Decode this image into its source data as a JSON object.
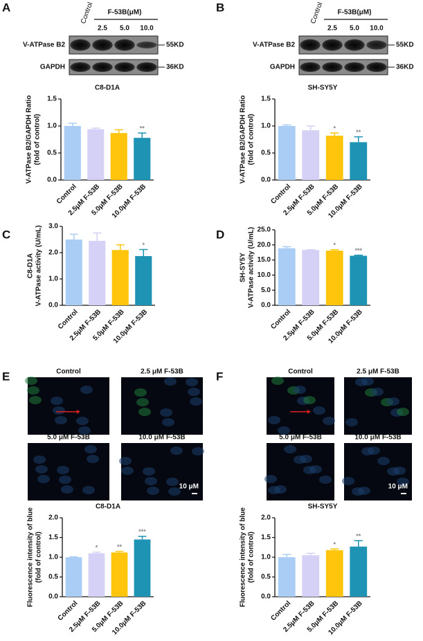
{
  "panel_labels": [
    "A",
    "B",
    "C",
    "D",
    "E",
    "F"
  ],
  "blots": [
    {
      "lanes": [
        "Control",
        "2.5",
        "5.0",
        "10.0"
      ],
      "treatment": "F-53B(μM)",
      "rows": [
        {
          "protein": "V-ATPase B2",
          "size": "55KD"
        },
        {
          "protein": "GAPDH",
          "size": "36KD"
        }
      ]
    },
    {
      "lanes": [
        "Control",
        "2.5",
        "5.0",
        "10.0"
      ],
      "treatment": "F-53B(μM)",
      "rows": [
        {
          "protein": "V-ATPase B2",
          "size": "55KD"
        },
        {
          "protein": "GAPDH",
          "size": "36KD"
        }
      ]
    }
  ],
  "micrographs": [
    {
      "labels": [
        "Control",
        "2.5 μM F-53B",
        "5.0 μM F-53B",
        "10.0 μM F-53B"
      ],
      "scale": "10 μM"
    },
    {
      "labels": [
        "Control",
        "2.5 μM F-53B",
        "5.0 μM F-53B",
        "10.0 μM F-53B"
      ],
      "scale": "10 μM"
    }
  ],
  "chart_data": [
    {
      "type": "bar",
      "title": "C8-D1A",
      "ylabel": [
        "V-ATPase B2/GAPDH Ratio",
        "(fold of control)"
      ],
      "categories": [
        "Control",
        "2.5μM F-53B",
        "5.0μM F-53B",
        "10.0μM F-53B"
      ],
      "values": [
        1.0,
        0.94,
        0.87,
        0.78
      ],
      "errors": [
        0.05,
        0.02,
        0.06,
        0.09
      ],
      "annotations": [
        null,
        null,
        null,
        "**"
      ],
      "colors": [
        "#a9cdf5",
        "#d5d0f6",
        "#fec50c",
        "#1f93b3"
      ],
      "ylim": [
        0,
        1.5
      ],
      "yticks": [
        {
          "value": 0,
          "label": "0.0"
        },
        {
          "value": 0.5,
          "label": "0.5"
        },
        {
          "value": 1,
          "label": "1.0"
        },
        {
          "value": 1.5,
          "label": "1.5"
        }
      ]
    },
    {
      "type": "bar",
      "title": "SH-SY5Y",
      "ylabel": [
        "V-ATPase B2/GAPDH Ratio",
        "(fold of control)"
      ],
      "categories": [
        "Control",
        "2.5μM F-53B",
        "5.0μM F-53B",
        "10.0μM F-53B"
      ],
      "values": [
        1.0,
        0.92,
        0.82,
        0.7
      ],
      "errors": [
        0.02,
        0.08,
        0.05,
        0.1
      ],
      "annotations": [
        null,
        null,
        "*",
        "**"
      ],
      "colors": [
        "#a9cdf5",
        "#d5d0f6",
        "#fec50c",
        "#1f93b3"
      ],
      "ylim": [
        0,
        1.5
      ],
      "yticks": [
        {
          "value": 0,
          "label": "0.0"
        },
        {
          "value": 0.5,
          "label": "0.5"
        },
        {
          "value": 1,
          "label": "1.0"
        },
        {
          "value": 1.5,
          "label": "1.5"
        }
      ]
    },
    {
      "type": "bar",
      "ylabel": [
        "C8-D1A",
        "V-ATPase activity (U/mL)"
      ],
      "categories": [
        "Control",
        "2.5μM F-53B",
        "5.0μM F-53B",
        "10.0μM F-53B"
      ],
      "values": [
        2.5,
        2.45,
        2.1,
        1.87
      ],
      "errors": [
        0.2,
        0.3,
        0.2,
        0.25
      ],
      "annotations": [
        null,
        null,
        null,
        "*"
      ],
      "colors": [
        "#a9cdf5",
        "#d5d0f6",
        "#fec50c",
        "#1f93b3"
      ],
      "ylim": [
        0,
        3
      ],
      "yticks": [
        {
          "value": 0,
          "label": "0.0"
        },
        {
          "value": 1,
          "label": "1.0"
        },
        {
          "value": 2,
          "label": "2.0"
        },
        {
          "value": 3,
          "label": "3.0"
        }
      ]
    },
    {
      "type": "bar",
      "ylabel": [
        "SH-SY5Y",
        "V-ATPase activity (U/mL)"
      ],
      "categories": [
        "Control",
        "2.5μM F-53B",
        "5.0μM F-53B",
        "10.0μM F-53B"
      ],
      "values": [
        18.9,
        18.3,
        18.1,
        16.4
      ],
      "errors": [
        0.5,
        0.1,
        0.3,
        0.2
      ],
      "annotations": [
        null,
        null,
        "*",
        "***"
      ],
      "colors": [
        "#a9cdf5",
        "#d5d0f6",
        "#fec50c",
        "#1f93b3"
      ],
      "ylim": [
        0,
        25
      ],
      "yticks": [
        {
          "value": 0,
          "label": "0.0"
        },
        {
          "value": 5,
          "label": "5.0"
        },
        {
          "value": 10,
          "label": "10.0"
        },
        {
          "value": 15,
          "label": "15.0"
        },
        {
          "value": 20,
          "label": "20.0"
        },
        {
          "value": 25,
          "label": "25.0"
        }
      ]
    },
    {
      "type": "bar",
      "title": "C8-D1A",
      "ylabel": [
        "Fluorescence intensity of blue",
        "(fold of control)"
      ],
      "categories": [
        "Control",
        "2.5μM F-53B",
        "5.0μM F-53B",
        "10.0μM F-53B"
      ],
      "values": [
        1.0,
        1.1,
        1.12,
        1.45
      ],
      "errors": [
        0.01,
        0.03,
        0.03,
        0.08
      ],
      "annotations": [
        null,
        "*",
        "**",
        "***"
      ],
      "colors": [
        "#a9cdf5",
        "#d5d0f6",
        "#fec50c",
        "#1f93b3"
      ],
      "ylim": [
        0,
        2
      ],
      "yticks": [
        {
          "value": 0,
          "label": "0.0"
        },
        {
          "value": 0.5,
          "label": "0.5"
        },
        {
          "value": 1,
          "label": "1.0"
        },
        {
          "value": 1.5,
          "label": "1.5"
        },
        {
          "value": 2,
          "label": "2.0"
        }
      ]
    },
    {
      "type": "bar",
      "title": "SH-SY5Y",
      "ylabel": [
        "Fluorescence intensity of blue",
        "(fold of control)"
      ],
      "categories": [
        "Control",
        "2.5μM F-53B",
        "5.0μM F-53B",
        "10.0μM F-53B"
      ],
      "values": [
        1.0,
        1.05,
        1.18,
        1.27
      ],
      "errors": [
        0.07,
        0.05,
        0.03,
        0.15
      ],
      "annotations": [
        null,
        null,
        "*",
        "**"
      ],
      "colors": [
        "#a9cdf5",
        "#d5d0f6",
        "#fec50c",
        "#1f93b3"
      ],
      "ylim": [
        0,
        2
      ],
      "yticks": [
        {
          "value": 0,
          "label": "0.0"
        },
        {
          "value": 0.5,
          "label": "0.5"
        },
        {
          "value": 1,
          "label": "1.0"
        },
        {
          "value": 1.5,
          "label": "1.5"
        },
        {
          "value": 2,
          "label": "2.0"
        }
      ]
    }
  ]
}
